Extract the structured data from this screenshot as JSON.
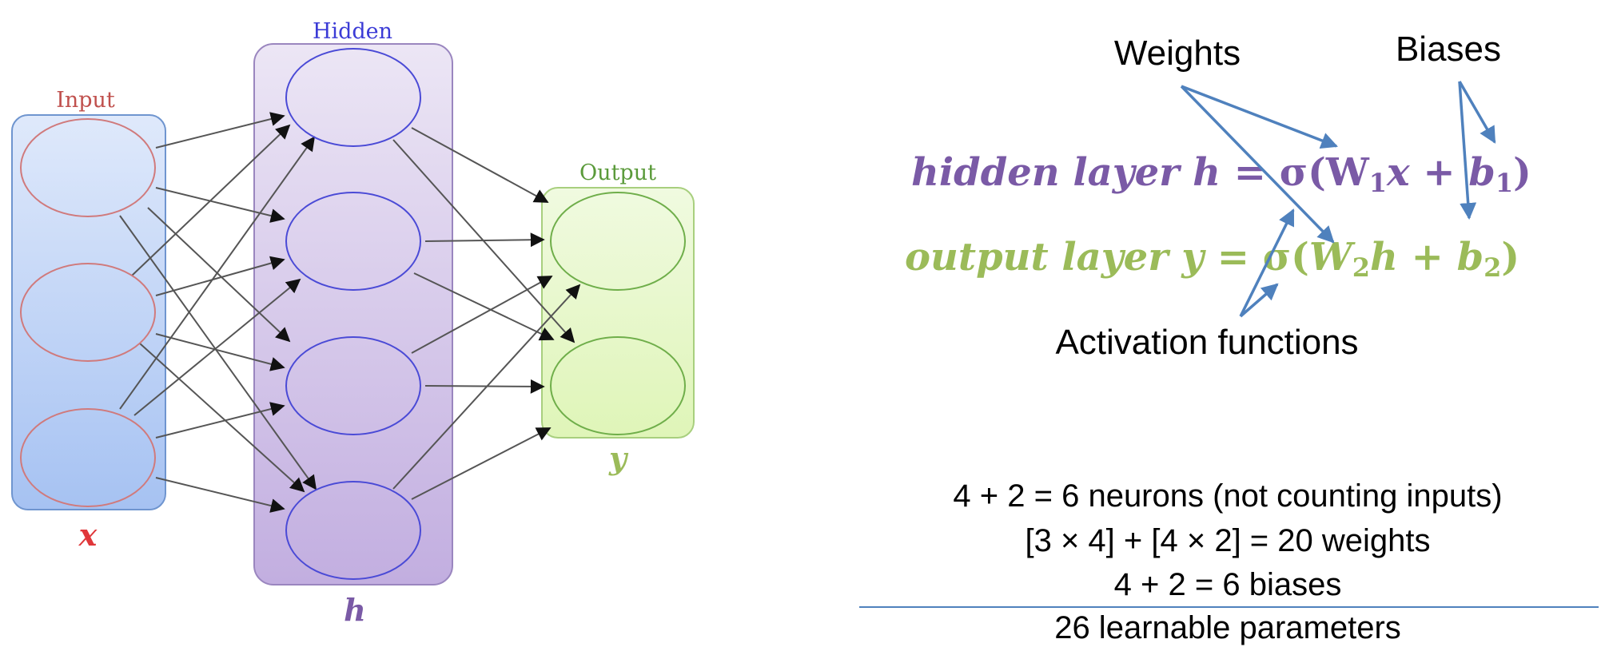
{
  "network": {
    "input": {
      "title": "Input",
      "var": "x",
      "neurons": 3
    },
    "hidden": {
      "title": "Hidden",
      "var": "h",
      "neurons": 4
    },
    "output": {
      "title": "Output",
      "var": "y",
      "neurons": 2
    }
  },
  "annotations": {
    "weights": "Weights",
    "biases": "Biases",
    "activation": "Activation functions"
  },
  "equations": {
    "hidden": {
      "prefix": "hidden layer ",
      "var": "h",
      "rhs_open": " = σ(",
      "w": "W",
      "w_sub": "1",
      "x": "x",
      "plus": " + ",
      "b": "b",
      "b_sub": "1",
      "close": ")"
    },
    "output": {
      "prefix": "output layer ",
      "var": "y",
      "rhs_open": " = σ(",
      "w": "W",
      "w_sub": "2",
      "x": "h",
      "plus": " + ",
      "b": "b",
      "b_sub": "2",
      "close": ")"
    }
  },
  "summary": {
    "neurons": "4 + 2 = 6 neurons (not counting inputs)",
    "weights": "[3 × 4] + [4 × 2] = 20 weights",
    "biases": "4 + 2 = 6 biases",
    "total": "26 learnable parameters"
  },
  "colors": {
    "input": "#e0373a",
    "input_title": "#c0504d",
    "hidden": "#7a5aa6",
    "hidden_title": "#3b3bd6",
    "output": "#9bbb59",
    "output_title": "#5a9a3a",
    "arrow_blue": "#4f81bd",
    "divider": "#4f81bd",
    "total": "#c0504d"
  }
}
